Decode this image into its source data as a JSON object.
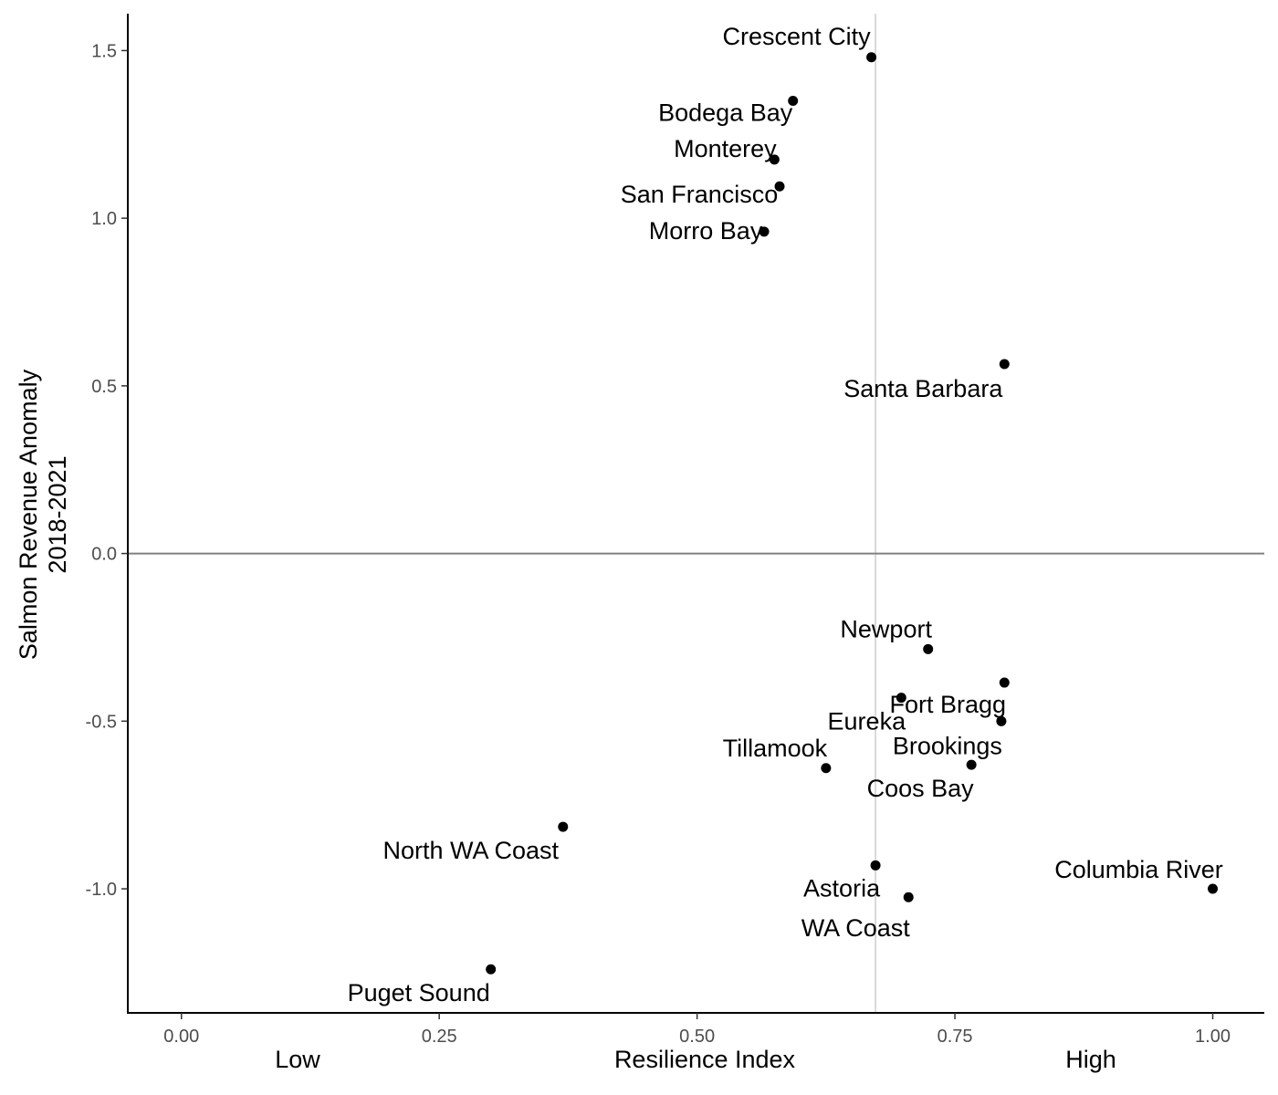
{
  "chart_data": {
    "type": "scatter",
    "title": "",
    "xlabel": "Resilience Index",
    "ylabel": "Salmon Revenue Anomaly\n2018-2021",
    "ylabel_lines": [
      "Salmon Revenue Anomaly",
      "2018-2021"
    ],
    "x_end_labels": {
      "low": "Low",
      "high": "High"
    },
    "xlim": [
      -0.052,
      1.05
    ],
    "ylim": [
      -1.37,
      1.61
    ],
    "x_ticks": [
      0.0,
      0.25,
      0.5,
      0.75,
      1.0
    ],
    "x_tick_labels": [
      "0.00",
      "0.25",
      "0.50",
      "0.75",
      "1.00"
    ],
    "y_ticks": [
      -1.0,
      -0.5,
      0.0,
      0.5,
      1.0,
      1.5
    ],
    "y_tick_labels": [
      "-1.0",
      "-0.5",
      "0.0",
      "0.5",
      "1.0",
      "1.5"
    ],
    "reference_lines": {
      "vertical_x": 0.673,
      "horizontal_y": 0.0
    },
    "grid": false,
    "legend": "none",
    "colors": {
      "points": "#000000",
      "zero_line": "#808080",
      "vertical_line": "#d9d9d9",
      "axis": "#000000"
    },
    "points": [
      {
        "label": "Crescent City",
        "x": 0.669,
        "y": 1.48
      },
      {
        "label": "Bodega Bay",
        "x": 0.593,
        "y": 1.35
      },
      {
        "label": "Monterey",
        "x": 0.575,
        "y": 1.175
      },
      {
        "label": "San Francisco",
        "x": 0.58,
        "y": 1.095
      },
      {
        "label": "Morro Bay",
        "x": 0.565,
        "y": 0.96
      },
      {
        "label": "Santa Barbara",
        "x": 0.798,
        "y": 0.565
      },
      {
        "label": "Newport",
        "x": 0.724,
        "y": -0.285
      },
      {
        "label": "Fort Bragg",
        "x": 0.798,
        "y": -0.385
      },
      {
        "label": "Eureka",
        "x": 0.698,
        "y": -0.43
      },
      {
        "label": "Brookings",
        "x": 0.795,
        "y": -0.5
      },
      {
        "label": "Tillamook",
        "x": 0.625,
        "y": -0.64
      },
      {
        "label": "Coos Bay",
        "x": 0.766,
        "y": -0.63
      },
      {
        "label": "North WA Coast",
        "x": 0.37,
        "y": -0.815
      },
      {
        "label": "Astoria",
        "x": 0.673,
        "y": -0.93
      },
      {
        "label": "Columbia River",
        "x": 1.0,
        "y": -1.0
      },
      {
        "label": "WA Coast",
        "x": 0.705,
        "y": -1.025
      },
      {
        "label": "Puget Sound",
        "x": 0.3,
        "y": -1.24
      }
    ]
  }
}
